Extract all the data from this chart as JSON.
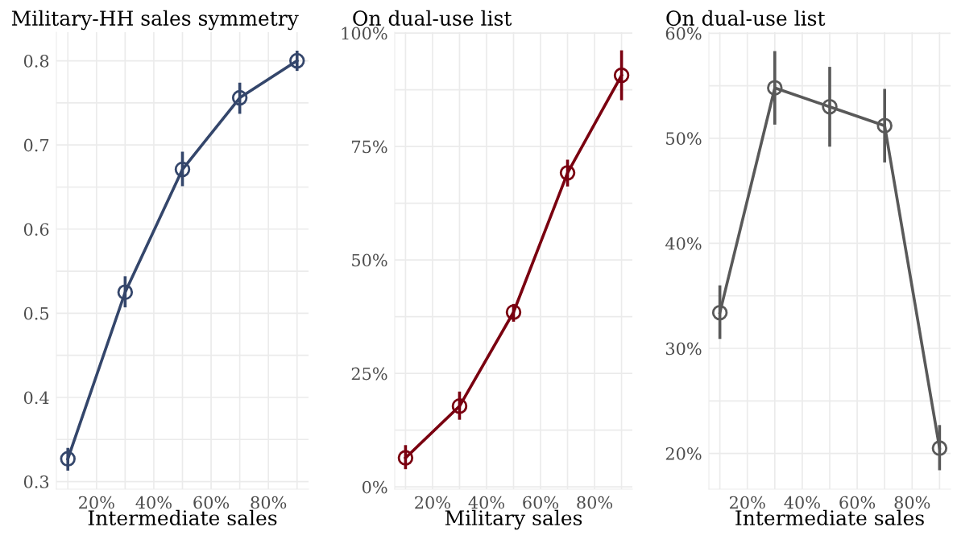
{
  "chart_data": [
    {
      "type": "line",
      "title": "Military-HH sales symmetry",
      "xlabel": "Intermediate sales",
      "x": [
        10,
        30,
        50,
        70,
        90
      ],
      "series": [
        {
          "color": "#34466b",
          "values": [
            0.327,
            0.525,
            0.671,
            0.756,
            0.8
          ],
          "errors": [
            [
              0.313,
              0.34
            ],
            [
              0.507,
              0.544
            ],
            [
              0.651,
              0.692
            ],
            [
              0.737,
              0.774
            ],
            [
              0.788,
              0.812
            ]
          ]
        }
      ],
      "xlim": [
        6,
        94
      ],
      "xticks": [
        {
          "value": 10,
          "label": null
        },
        {
          "value": 20,
          "label": "20%"
        },
        {
          "value": 30,
          "label": null
        },
        {
          "value": 40,
          "label": "40%"
        },
        {
          "value": 50,
          "label": null
        },
        {
          "value": 60,
          "label": "60%"
        },
        {
          "value": 70,
          "label": null
        },
        {
          "value": 80,
          "label": "80%"
        },
        {
          "value": 90,
          "label": null
        }
      ],
      "ylim": [
        0.291,
        0.834
      ],
      "yticks": [
        0.3,
        {
          "value": 0.35,
          "label": null
        },
        0.4,
        {
          "value": 0.45,
          "label": null
        },
        0.5,
        {
          "value": 0.55,
          "label": null
        },
        0.6,
        {
          "value": 0.65,
          "label": null
        },
        0.7,
        {
          "value": 0.75,
          "label": null
        },
        0.8
      ],
      "grid": true,
      "marker": "circle",
      "line_style": "solid"
    },
    {
      "type": "line",
      "title": "On dual-use list",
      "xlabel": "Military sales",
      "x": [
        10,
        30,
        50,
        70,
        90
      ],
      "series": [
        {
          "color": "#7a0010",
          "values": [
            6.4,
            17.8,
            38.5,
            69.2,
            90.7
          ],
          "errors": [
            [
              3.9,
              9.2
            ],
            [
              14.8,
              21.0
            ],
            [
              36.4,
              40.3
            ],
            [
              66.2,
              72.1
            ],
            [
              85.2,
              96.2
            ]
          ]
        }
      ],
      "xlim": [
        6,
        94
      ],
      "xticks": [
        {
          "value": 10,
          "label": null
        },
        {
          "value": 20,
          "label": "20%"
        },
        {
          "value": 30,
          "label": null
        },
        {
          "value": 40,
          "label": "40%"
        },
        {
          "value": 50,
          "label": null
        },
        {
          "value": 60,
          "label": "60%"
        },
        {
          "value": 70,
          "label": null
        },
        {
          "value": 80,
          "label": "80%"
        },
        {
          "value": 90,
          "label": null
        }
      ],
      "ylim": [
        -0.5,
        100.2
      ],
      "yticks": [
        {
          "value": 0,
          "label": "0%"
        },
        {
          "value": 12.5,
          "label": null
        },
        {
          "value": 25,
          "label": "25%"
        },
        {
          "value": 37.5,
          "label": null
        },
        {
          "value": 50,
          "label": "50%"
        },
        {
          "value": 62.5,
          "label": null
        },
        {
          "value": 75,
          "label": "75%"
        },
        {
          "value": 87.5,
          "label": null
        },
        {
          "value": 100,
          "label": "100%"
        }
      ],
      "grid": true,
      "marker": "circle",
      "line_style": "solid"
    },
    {
      "type": "line",
      "title": "On dual-use list",
      "xlabel": "Intermediate sales",
      "x": [
        10,
        30,
        50,
        70,
        90
      ],
      "series": [
        {
          "color": "#595959",
          "values": [
            33.4,
            54.8,
            53.0,
            51.2,
            20.5
          ],
          "errors": [
            [
              30.9,
              36.0
            ],
            [
              51.3,
              58.3
            ],
            [
              49.2,
              56.8
            ],
            [
              47.7,
              54.7
            ],
            [
              18.4,
              22.7
            ]
          ]
        }
      ],
      "xlim": [
        6,
        94
      ],
      "xticks": [
        {
          "value": 10,
          "label": null
        },
        {
          "value": 20,
          "label": "20%"
        },
        {
          "value": 30,
          "label": null
        },
        {
          "value": 40,
          "label": "40%"
        },
        {
          "value": 50,
          "label": null
        },
        {
          "value": 60,
          "label": "60%"
        },
        {
          "value": 70,
          "label": null
        },
        {
          "value": 80,
          "label": "80%"
        },
        {
          "value": 90,
          "label": null
        }
      ],
      "ylim": [
        16.6,
        60.1
      ],
      "yticks": [
        {
          "value": 20,
          "label": "20%"
        },
        {
          "value": 25,
          "label": null
        },
        {
          "value": 30,
          "label": "30%"
        },
        {
          "value": 35,
          "label": null
        },
        {
          "value": 40,
          "label": "40%"
        },
        {
          "value": 45,
          "label": null
        },
        {
          "value": 50,
          "label": "50%"
        },
        {
          "value": 55,
          "label": null
        },
        {
          "value": 60,
          "label": "60%"
        }
      ],
      "grid": true,
      "marker": "circle",
      "line_style": "solid"
    }
  ]
}
